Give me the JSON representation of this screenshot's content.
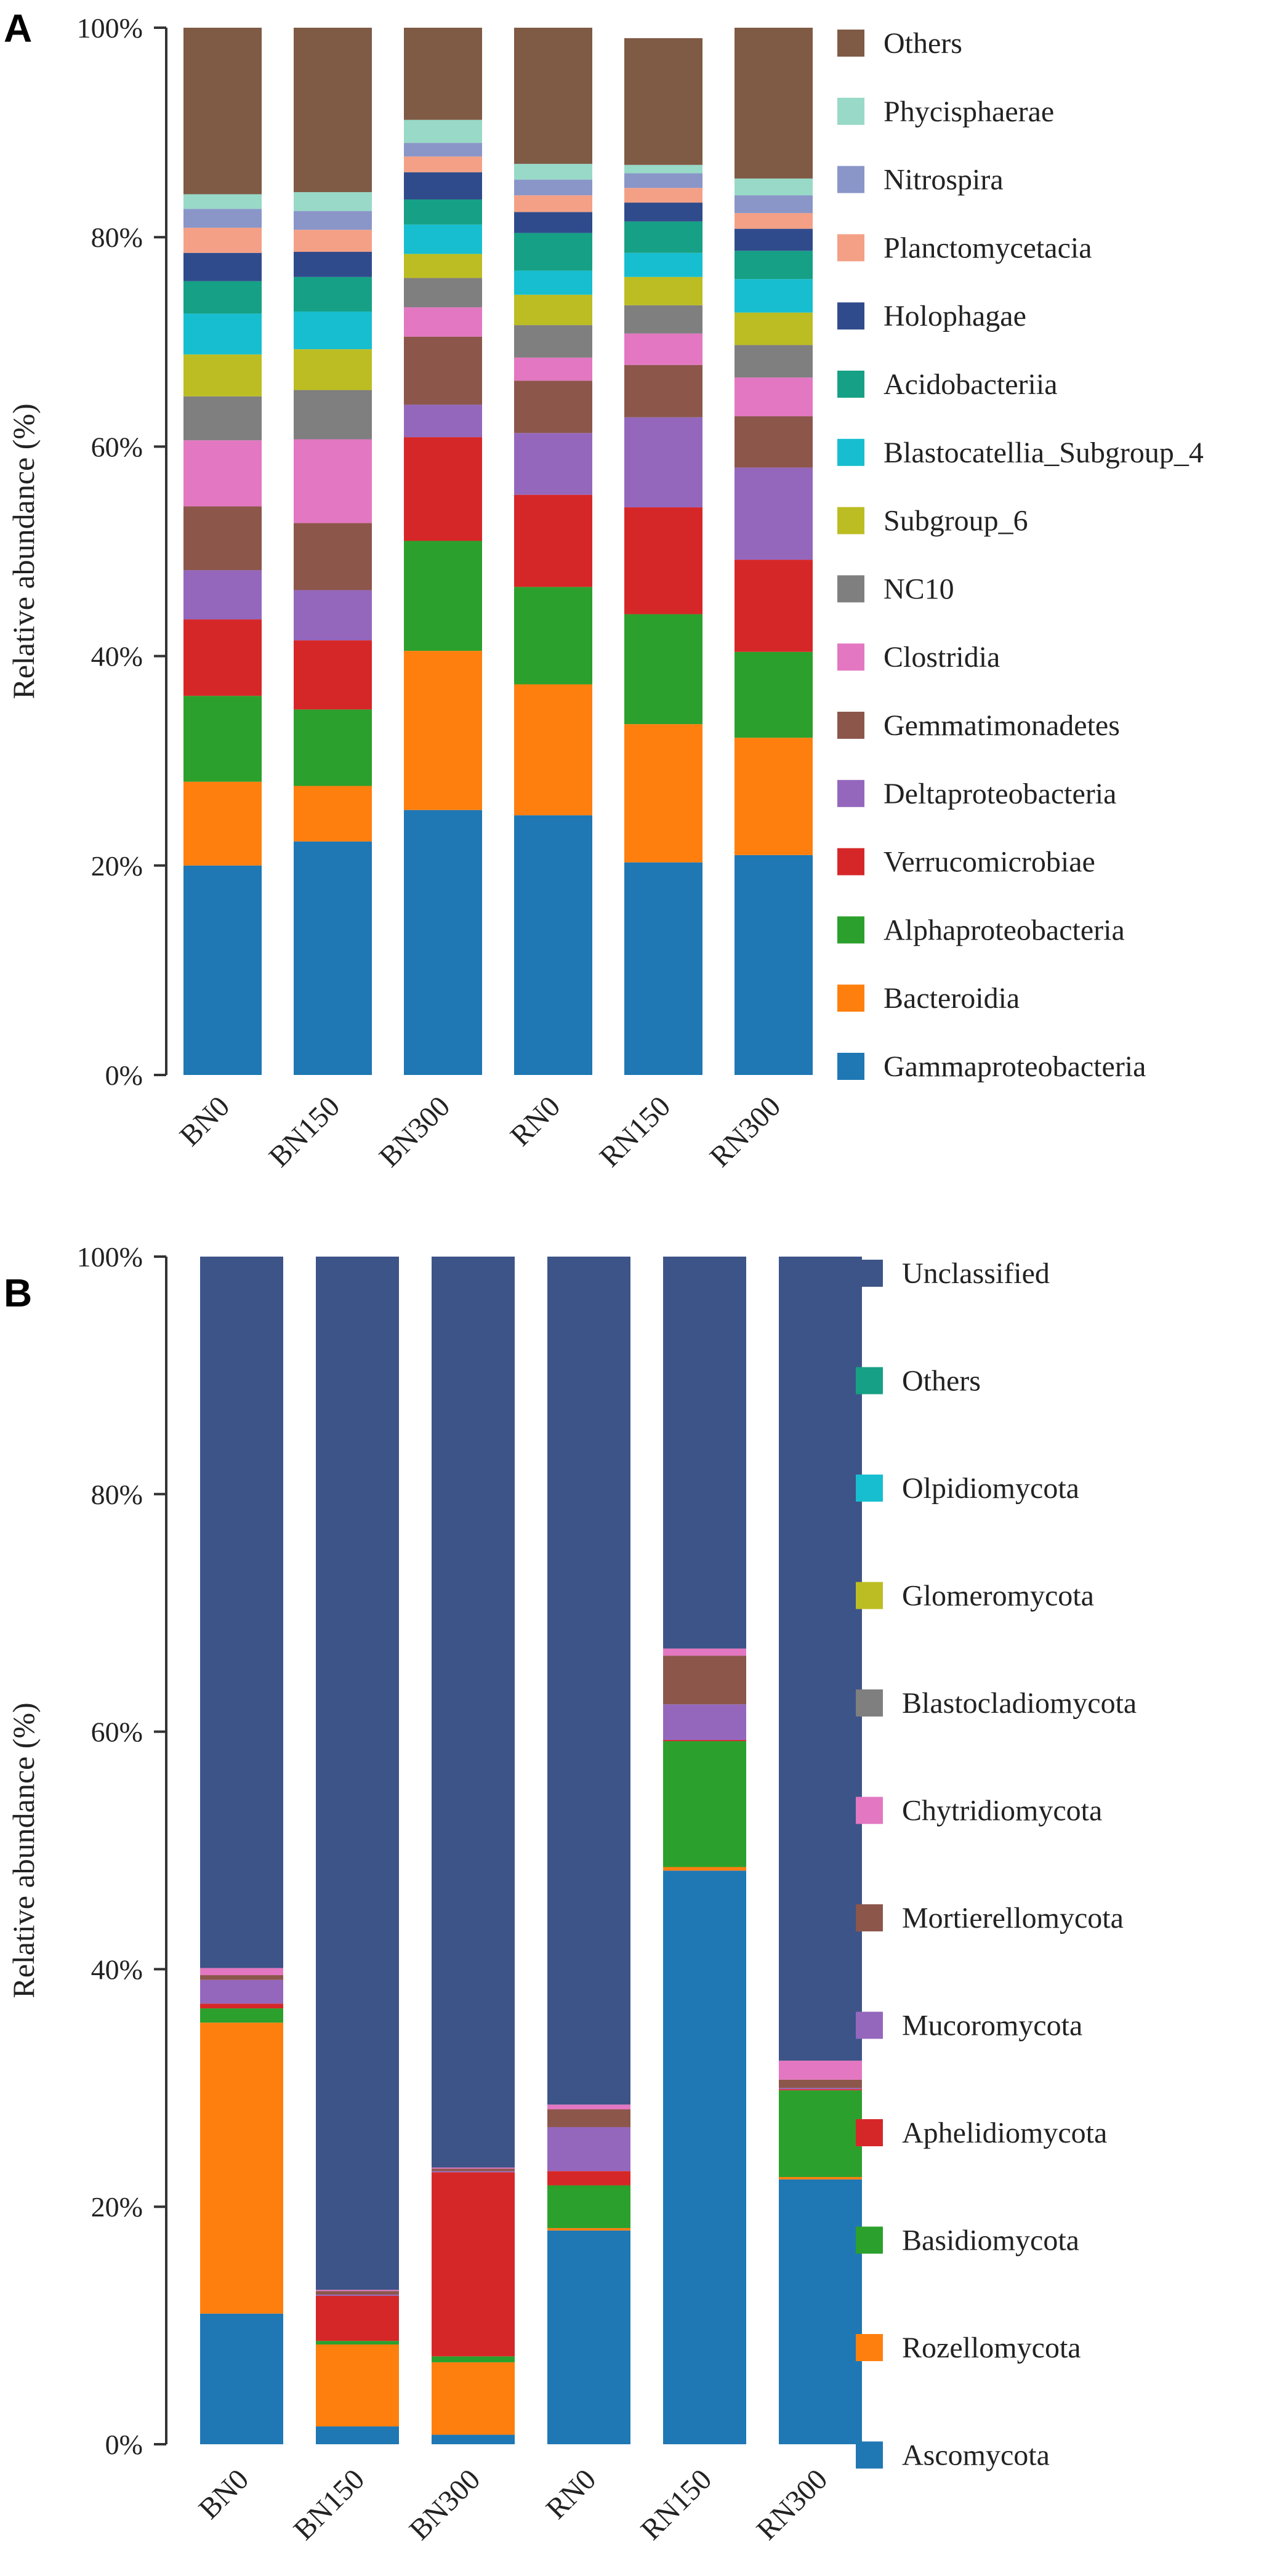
{
  "chart_data": [
    {
      "panel": "A",
      "type": "bar",
      "stacked": true,
      "ylabel": "Relative abundance (%)",
      "ylim": [
        0,
        100
      ],
      "yticks": [
        "0%",
        "20%",
        "40%",
        "60%",
        "80%",
        "100%"
      ],
      "categories": [
        "BN0",
        "BN150",
        "BN300",
        "RN0",
        "RN150",
        "RN300"
      ],
      "series": [
        {
          "name": "Gammaproteobacteria",
          "color": "#1f77b4",
          "values": [
            20,
            22.3,
            25.3,
            24.8,
            20.3,
            21
          ]
        },
        {
          "name": "Bacteroidia",
          "color": "#ff7f0e",
          "values": [
            8,
            5.3,
            15.2,
            12.5,
            13.2,
            11.2
          ]
        },
        {
          "name": "Alphaproteobacteria",
          "color": "#2ca02c",
          "values": [
            8.2,
            7.3,
            10.5,
            9.3,
            10.5,
            8.2
          ]
        },
        {
          "name": "Verrucomicrobiae",
          "color": "#d62728",
          "values": [
            7.3,
            6.6,
            9.9,
            8.8,
            10.2,
            8.8
          ]
        },
        {
          "name": "Deltaproteobacteria",
          "color": "#9467bd",
          "values": [
            4.7,
            4.8,
            3.1,
            5.9,
            8.6,
            8.8
          ]
        },
        {
          "name": "Gemmatimonadetes",
          "color": "#8c564b",
          "values": [
            6.1,
            6.4,
            6.5,
            5,
            5,
            4.9
          ]
        },
        {
          "name": "Clostridia",
          "color": "#e377c2",
          "values": [
            6.3,
            8,
            2.8,
            2.2,
            3,
            3.7
          ]
        },
        {
          "name": "NC10",
          "color": "#7f7f7f",
          "values": [
            4.2,
            4.7,
            2.8,
            3.1,
            2.7,
            3.1
          ]
        },
        {
          "name": "Subgroup_6",
          "color": "#bcbd22",
          "values": [
            4,
            3.9,
            2.3,
            2.9,
            2.7,
            3.1
          ]
        },
        {
          "name": "Blastocatellia_Subgroup_4",
          "color": "#17becf",
          "values": [
            3.9,
            3.6,
            2.8,
            2.3,
            2.3,
            3.2
          ]
        },
        {
          "name": "Acidobacteriia",
          "color": "#16a085",
          "values": [
            3.1,
            3.3,
            2.4,
            3.6,
            3,
            2.7
          ]
        },
        {
          "name": "Holophagae",
          "color": "#2f4b8c",
          "values": [
            2.7,
            2.4,
            2.6,
            2,
            1.8,
            2.1
          ]
        },
        {
          "name": "Planctomycetacia",
          "color": "#f4a086",
          "values": [
            2.4,
            2.1,
            1.5,
            1.6,
            1.4,
            1.5
          ]
        },
        {
          "name": "Nitrospira",
          "color": "#8a96c8",
          "values": [
            1.8,
            1.8,
            1.3,
            1.5,
            1.4,
            1.7
          ]
        },
        {
          "name": "Phycisphaerae",
          "color": "#98d9c7",
          "values": [
            1.4,
            1.8,
            2.2,
            1.5,
            0.8,
            1.6
          ]
        },
        {
          "name": "Others",
          "color": "#7f5a45",
          "values": [
            15.9,
            15.7,
            8.8,
            13,
            12.1,
            14.4
          ]
        }
      ]
    },
    {
      "panel": "B",
      "type": "bar",
      "stacked": true,
      "ylabel": "Relative abundance (%)",
      "ylim": [
        0,
        100
      ],
      "yticks": [
        "0%",
        "20%",
        "40%",
        "60%",
        "80%",
        "100%"
      ],
      "categories": [
        "BN0",
        "BN150",
        "BN300",
        "RN0",
        "RN150",
        "RN300"
      ],
      "series": [
        {
          "name": "Ascomycota",
          "color": "#1f77b4",
          "values": [
            11,
            1.5,
            0.8,
            18,
            48.3,
            22.3
          ]
        },
        {
          "name": "Rozellomycota",
          "color": "#ff7f0e",
          "values": [
            24.5,
            6.9,
            6.1,
            0.2,
            0.3,
            0.2
          ]
        },
        {
          "name": "Basidiomycota",
          "color": "#2ca02c",
          "values": [
            1.2,
            0.3,
            0.5,
            3.6,
            10.6,
            7.3
          ]
        },
        {
          "name": "Aphelidiomycota",
          "color": "#d62728",
          "values": [
            0.4,
            3.8,
            15.5,
            1.2,
            0.1,
            0.1
          ]
        },
        {
          "name": "Mucoromycota",
          "color": "#9467bd",
          "values": [
            2,
            0.1,
            0.1,
            3.7,
            3,
            0.1
          ]
        },
        {
          "name": "Mortierellomycota",
          "color": "#8c564b",
          "values": [
            0.4,
            0.3,
            0.2,
            1.5,
            4.1,
            0.7
          ]
        },
        {
          "name": "Chytridiomycota",
          "color": "#e377c2",
          "values": [
            0.6,
            0.1,
            0.1,
            0.4,
            0.6,
            1.6
          ]
        },
        {
          "name": "Blastocladiomycota",
          "color": "#7f7f7f",
          "values": [
            0,
            0,
            0,
            0,
            0,
            0
          ]
        },
        {
          "name": "Glomeromycota",
          "color": "#bcbd22",
          "values": [
            0,
            0,
            0,
            0,
            0,
            0
          ]
        },
        {
          "name": "Olpidiomycota",
          "color": "#17becf",
          "values": [
            0,
            0,
            0,
            0,
            0,
            0
          ]
        },
        {
          "name": "Others",
          "color": "#16a085",
          "values": [
            0,
            0,
            0,
            0,
            0,
            0
          ]
        },
        {
          "name": "Unclassified",
          "color": "#3d5488",
          "values": [
            59.9,
            87,
            76.7,
            71.4,
            33,
            67.7
          ]
        }
      ]
    }
  ]
}
